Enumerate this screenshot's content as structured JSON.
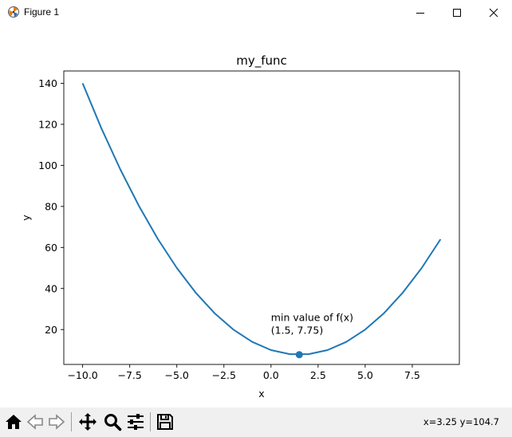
{
  "window": {
    "title": "Figure 1",
    "controls": [
      "minimize",
      "maximize",
      "close"
    ]
  },
  "toolbar": {
    "tools": [
      {
        "name": "home",
        "icon": "home-icon"
      },
      {
        "name": "back",
        "icon": "arrow-left-icon"
      },
      {
        "name": "forward",
        "icon": "arrow-right-icon"
      },
      {
        "name": "pan",
        "icon": "move-icon"
      },
      {
        "name": "zoom",
        "icon": "magnifier-icon"
      },
      {
        "name": "configure-subplots",
        "icon": "sliders-icon"
      },
      {
        "name": "save",
        "icon": "floppy-disk-icon"
      }
    ],
    "coordinates": "x=3.25 y=104.7"
  },
  "chart_data": {
    "type": "line",
    "title": "my_func",
    "xlabel": "x",
    "ylabel": "y",
    "xlim": [
      -11,
      10
    ],
    "ylim": [
      3,
      146
    ],
    "xticks": [
      -10.0,
      -7.5,
      -5.0,
      -2.5,
      0.0,
      2.5,
      5.0,
      7.5
    ],
    "xtick_labels": [
      "−10.0",
      "−7.5",
      "−5.0",
      "−2.5",
      "0.0",
      "2.5",
      "5.0",
      "7.5"
    ],
    "yticks": [
      20,
      40,
      60,
      80,
      100,
      120,
      140
    ],
    "ytick_labels": [
      "20",
      "40",
      "60",
      "80",
      "100",
      "120",
      "140"
    ],
    "grid": false,
    "series": [
      {
        "color": "#1f77b4",
        "x": [
          -10,
          -9,
          -8,
          -7,
          -6,
          -5,
          -4,
          -3,
          -2,
          -1,
          0,
          1,
          2,
          3,
          4,
          5,
          6,
          7,
          8,
          9
        ],
        "y": [
          140,
          118,
          98,
          80,
          64,
          50,
          38,
          28,
          20,
          14,
          10,
          8,
          8,
          10,
          14,
          20,
          28,
          38,
          50,
          64
        ]
      }
    ],
    "points": [
      {
        "x": 1.5,
        "y": 7.75,
        "color": "#1f77b4"
      }
    ],
    "annotations": [
      {
        "lines": [
          "min value of f(x)",
          "(1.5, 7.75)"
        ],
        "x": 0,
        "y": 18
      }
    ]
  },
  "colors": {
    "line": "#1f77b4",
    "toolbar_bg": "#f0f0f0"
  }
}
